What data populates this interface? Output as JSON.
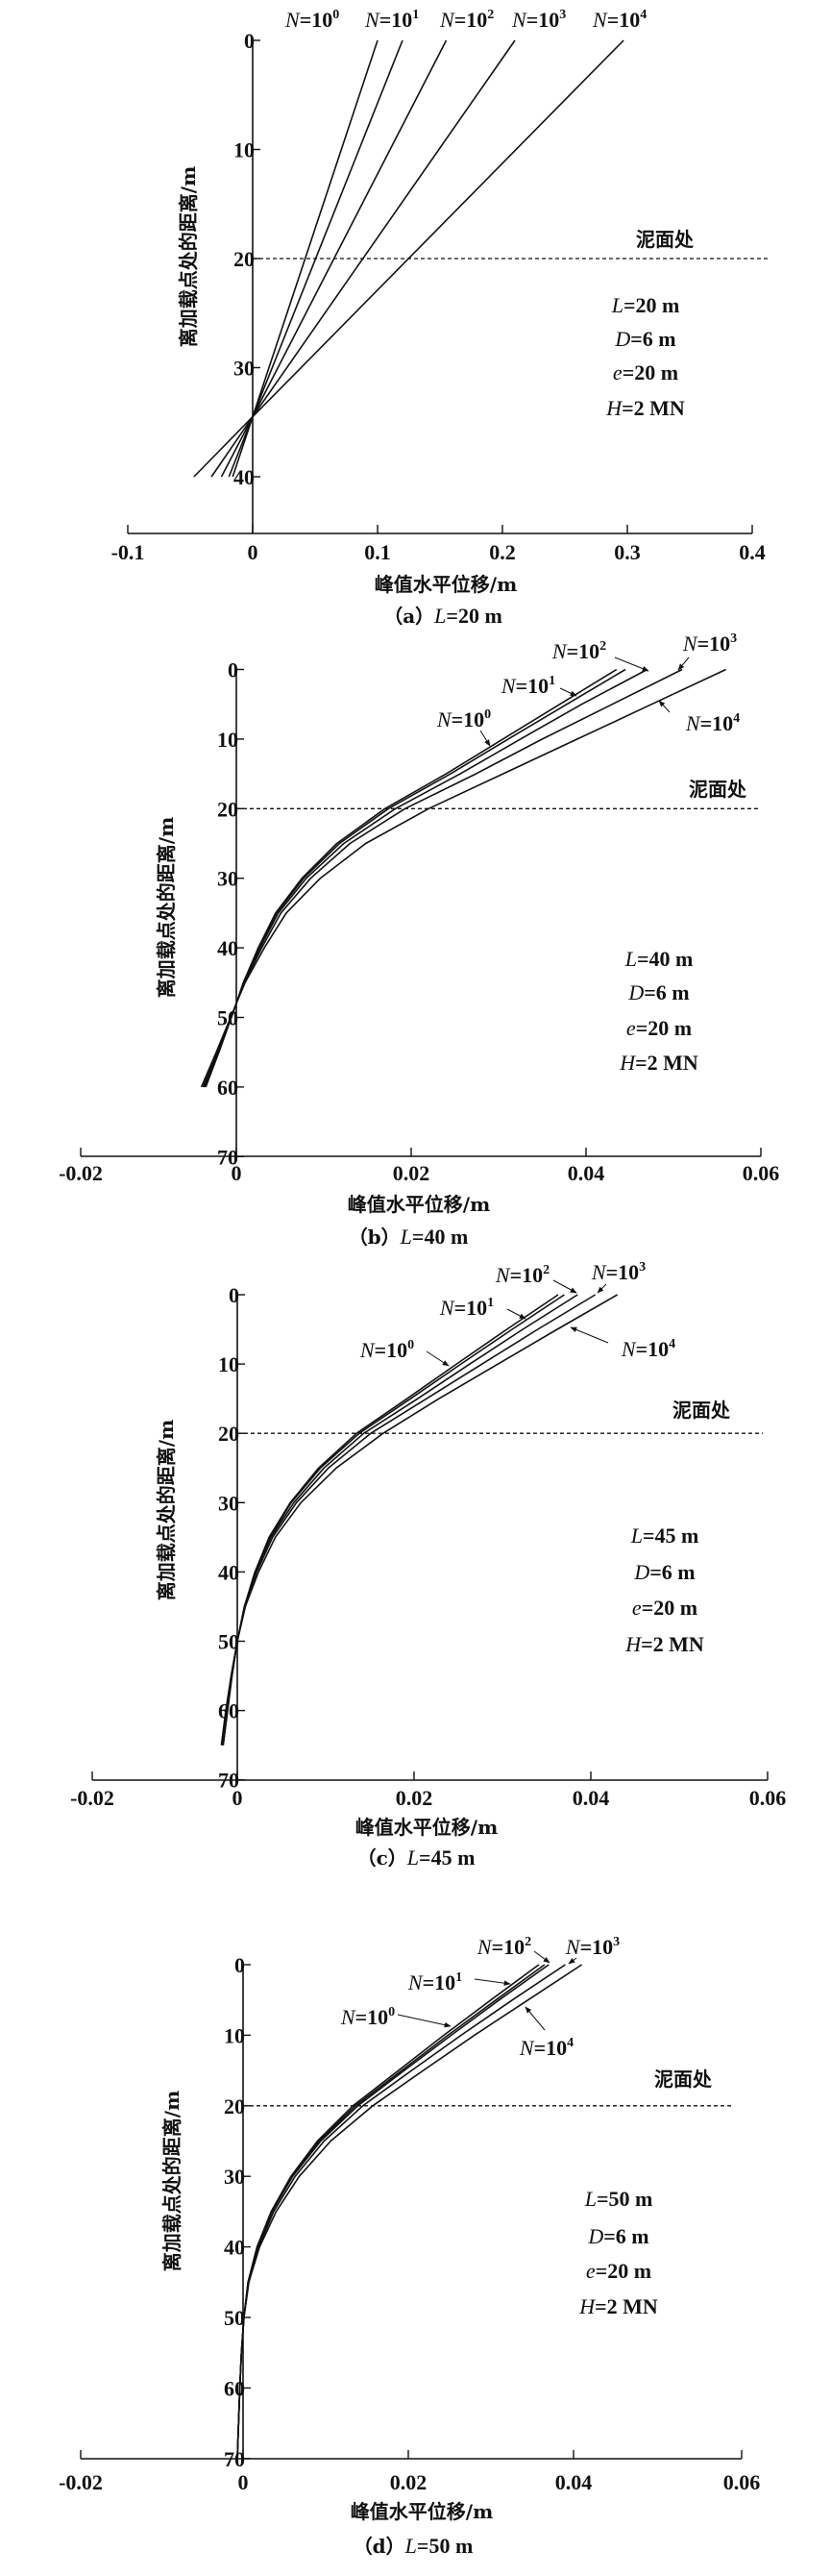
{
  "colors": {
    "line": "#111111",
    "background": "#ffffff"
  },
  "chart_data": [
    {
      "type": "line",
      "panel": "a",
      "caption": {
        "prefix": "（a）",
        "var": "L",
        "value": "=20 m"
      },
      "xlabel": "峰值水平位移/m",
      "ylabel": "离加载点处的距离/m",
      "xlim": [
        -0.1,
        0.4
      ],
      "ylim": [
        0,
        45
      ],
      "y_inverted": true,
      "xticks": [
        "-0.1",
        "0",
        "0.1",
        "0.2",
        "0.3",
        "0.4"
      ],
      "xtick_values": [
        -0.1,
        0,
        0.1,
        0.2,
        0.3,
        0.4
      ],
      "yticks": [
        0,
        10,
        20,
        30,
        40
      ],
      "mudline": {
        "label": "泥面处",
        "depth": 20
      },
      "params": [
        {
          "var": "L",
          "value": "=20 m"
        },
        {
          "var": "D",
          "value": "=6 m"
        },
        {
          "var": "e",
          "value": "=20 m"
        },
        {
          "var": "H",
          "value": "=2 MN"
        }
      ],
      "depth": [
        0,
        34.5,
        40
      ],
      "series": [
        {
          "name": {
            "var": "N",
            "eq": "=10",
            "exp": "0"
          },
          "values": [
            0.1,
            0,
            -0.016
          ]
        },
        {
          "name": {
            "var": "N",
            "eq": "=10",
            "exp": "1"
          },
          "values": [
            0.12,
            0,
            -0.019
          ]
        },
        {
          "name": {
            "var": "N",
            "eq": "=10",
            "exp": "2"
          },
          "values": [
            0.155,
            0,
            -0.025
          ]
        },
        {
          "name": {
            "var": "N",
            "eq": "=10",
            "exp": "3"
          },
          "values": [
            0.21,
            0,
            -0.033
          ]
        },
        {
          "name": {
            "var": "N",
            "eq": "=10",
            "exp": "4"
          },
          "values": [
            0.297,
            0,
            -0.047
          ]
        }
      ]
    },
    {
      "type": "line",
      "panel": "b",
      "caption": {
        "prefix": "（b）",
        "var": "L",
        "value": "=40 m"
      },
      "xlabel": "峰值水平位移/m",
      "ylabel": "离加载点处的距离/m",
      "xlim": [
        -0.02,
        0.06
      ],
      "ylim": [
        0,
        70
      ],
      "y_inverted": true,
      "xticks": [
        "-0.02",
        "0",
        "0.02",
        "0.04",
        "0.06"
      ],
      "xtick_values": [
        -0.02,
        0,
        0.02,
        0.04,
        0.06
      ],
      "yticks": [
        0,
        10,
        20,
        30,
        40,
        50,
        60,
        70
      ],
      "mudline": {
        "label": "泥面处",
        "depth": 20
      },
      "params": [
        {
          "var": "L",
          "value": "=40 m"
        },
        {
          "var": "D",
          "value": "=6 m"
        },
        {
          "var": "e",
          "value": "=20 m"
        },
        {
          "var": "H",
          "value": "=2 MN"
        }
      ],
      "depth": [
        0,
        5,
        10,
        15,
        20,
        25,
        30,
        35,
        40,
        45,
        48,
        55,
        60
      ],
      "series": [
        {
          "name": {
            "var": "N",
            "eq": "=10",
            "exp": "0"
          },
          "values": [
            0.0435,
            0.037,
            0.0305,
            0.024,
            0.017,
            0.0115,
            0.0075,
            0.0045,
            0.0025,
            0.0008,
            0,
            -0.002,
            -0.0035
          ]
        },
        {
          "name": {
            "var": "N",
            "eq": "=10",
            "exp": "1"
          },
          "values": [
            0.0445,
            0.0378,
            0.0311,
            0.0245,
            0.0174,
            0.0118,
            0.0077,
            0.0046,
            0.0026,
            0.0008,
            0,
            -0.002,
            -0.0036
          ]
        },
        {
          "name": {
            "var": "N",
            "eq": "=10",
            "exp": "2"
          },
          "values": [
            0.047,
            0.0395,
            0.0325,
            0.0256,
            0.0182,
            0.0123,
            0.008,
            0.0048,
            0.0027,
            0.0009,
            0,
            -0.0021,
            -0.0037
          ]
        },
        {
          "name": {
            "var": "N",
            "eq": "=10",
            "exp": "3"
          },
          "values": [
            0.051,
            0.043,
            0.035,
            0.0274,
            0.0193,
            0.013,
            0.0085,
            0.0051,
            0.0029,
            0.0009,
            0,
            -0.0022,
            -0.0038
          ]
        },
        {
          "name": {
            "var": "N",
            "eq": "=10",
            "exp": "4"
          },
          "values": [
            0.056,
            0.0475,
            0.039,
            0.0305,
            0.022,
            0.0148,
            0.0096,
            0.0057,
            0.0032,
            0.001,
            0,
            -0.0023,
            -0.004
          ]
        }
      ]
    },
    {
      "type": "line",
      "panel": "c",
      "caption": {
        "prefix": "（c）",
        "var": "L",
        "value": "=45 m"
      },
      "xlabel": "峰值水平位移/m",
      "ylabel": "离加载点处的距离/m",
      "xlim": [
        -0.02,
        0.06
      ],
      "ylim": [
        0,
        70
      ],
      "y_inverted": true,
      "xticks": [
        "-0.02",
        "0",
        "0.02",
        "0.04",
        "0.06"
      ],
      "xtick_values": [
        -0.02,
        0,
        0.02,
        0.04,
        0.06
      ],
      "yticks": [
        0,
        10,
        20,
        30,
        40,
        50,
        60,
        70
      ],
      "mudline": {
        "label": "泥面处",
        "depth": 20
      },
      "params": [
        {
          "var": "L",
          "value": "=45 m"
        },
        {
          "var": "D",
          "value": "=6 m"
        },
        {
          "var": "e",
          "value": "=20 m"
        },
        {
          "var": "H",
          "value": "=2 MN"
        }
      ],
      "depth": [
        0,
        5,
        10,
        15,
        20,
        25,
        30,
        35,
        40,
        45,
        50,
        55,
        60,
        65
      ],
      "series": [
        {
          "name": {
            "var": "N",
            "eq": "=10",
            "exp": "0"
          },
          "values": [
            0.0363,
            0.0305,
            0.0248,
            0.0192,
            0.0135,
            0.0092,
            0.006,
            0.0036,
            0.002,
            0.0008,
            0,
            -0.0006,
            -0.0011,
            -0.0016
          ]
        },
        {
          "name": {
            "var": "N",
            "eq": "=10",
            "exp": "1"
          },
          "values": [
            0.037,
            0.0311,
            0.0253,
            0.0196,
            0.0138,
            0.0094,
            0.0061,
            0.0037,
            0.002,
            0.0008,
            0,
            -0.0006,
            -0.0011,
            -0.0016
          ]
        },
        {
          "name": {
            "var": "N",
            "eq": "=10",
            "exp": "2"
          },
          "values": [
            0.0385,
            0.0323,
            0.0263,
            0.0204,
            0.0143,
            0.0098,
            0.0064,
            0.0038,
            0.0021,
            0.0008,
            0,
            -0.0006,
            -0.0012,
            -0.0017
          ]
        },
        {
          "name": {
            "var": "N",
            "eq": "=10",
            "exp": "3"
          },
          "values": [
            0.0405,
            0.034,
            0.0277,
            0.0214,
            0.0151,
            0.0103,
            0.0067,
            0.004,
            0.0022,
            0.0009,
            0,
            -0.0007,
            -0.0012,
            -0.0017
          ]
        },
        {
          "name": {
            "var": "N",
            "eq": "=10",
            "exp": "4"
          },
          "values": [
            0.043,
            0.0362,
            0.0295,
            0.0228,
            0.0165,
            0.0112,
            0.0072,
            0.0043,
            0.0024,
            0.0009,
            0,
            -0.0007,
            -0.0013,
            -0.0018
          ]
        }
      ]
    },
    {
      "type": "line",
      "panel": "d",
      "caption": {
        "prefix": "（d）",
        "var": "L",
        "value": "=50 m"
      },
      "xlabel": "峰值水平位移/m",
      "ylabel": "离加载点处的距离/m",
      "xlim": [
        -0.02,
        0.06
      ],
      "ylim": [
        0,
        70
      ],
      "y_inverted": true,
      "xticks": [
        "-0.02",
        "0",
        "0.02",
        "0.04",
        "0.06"
      ],
      "xtick_values": [
        -0.02,
        0,
        0.02,
        0.04,
        0.06
      ],
      "yticks": [
        0,
        10,
        20,
        30,
        40,
        50,
        60,
        70
      ],
      "mudline": {
        "label": "泥面处",
        "depth": 20
      },
      "params": [
        {
          "var": "L",
          "value": "=50 m"
        },
        {
          "var": "D",
          "value": "=6 m"
        },
        {
          "var": "e",
          "value": "=20 m"
        },
        {
          "var": "H",
          "value": "=2 MN"
        }
      ],
      "depth": [
        0,
        5,
        10,
        15,
        20,
        25,
        30,
        35,
        40,
        45,
        50,
        55,
        60,
        70
      ],
      "series": [
        {
          "name": {
            "var": "N",
            "eq": "=10",
            "exp": "0"
          },
          "values": [
            0.0358,
            0.03,
            0.0243,
            0.0188,
            0.0133,
            0.009,
            0.0058,
            0.0034,
            0.0017,
            0.0006,
            0.0001,
            -0.0002,
            -0.0004,
            -0.0007
          ]
        },
        {
          "name": {
            "var": "N",
            "eq": "=10",
            "exp": "1"
          },
          "values": [
            0.0365,
            0.0306,
            0.0248,
            0.0192,
            0.0136,
            0.0092,
            0.0059,
            0.0035,
            0.0017,
            0.0006,
            0.0001,
            -0.0002,
            -0.0004,
            -0.0007
          ]
        },
        {
          "name": {
            "var": "N",
            "eq": "=10",
            "exp": "2"
          },
          "values": [
            0.037,
            0.031,
            0.0252,
            0.0195,
            0.0139,
            0.0094,
            0.006,
            0.0035,
            0.0018,
            0.0006,
            0.0001,
            -0.0002,
            -0.0004,
            -0.0007
          ]
        },
        {
          "name": {
            "var": "N",
            "eq": "=10",
            "exp": "3"
          },
          "values": [
            0.039,
            0.0326,
            0.0264,
            0.0204,
            0.0145,
            0.0098,
            0.0063,
            0.0037,
            0.0019,
            0.0007,
            0.0001,
            -0.0002,
            -0.0004,
            -0.0007
          ]
        },
        {
          "name": {
            "var": "N",
            "eq": "=10",
            "exp": "4"
          },
          "values": [
            0.041,
            0.0345,
            0.028,
            0.0218,
            0.0157,
            0.0106,
            0.0068,
            0.004,
            0.002,
            0.0007,
            0.0001,
            -0.0002,
            -0.0004,
            -0.0007
          ]
        }
      ]
    }
  ]
}
